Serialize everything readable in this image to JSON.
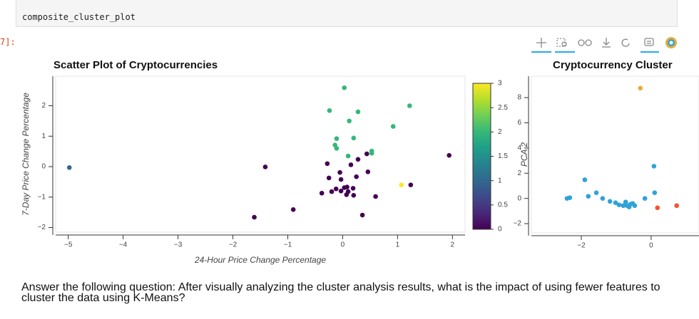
{
  "cell": {
    "prompt": "7]:",
    "code": "composite_cluster_plot"
  },
  "chart_data": [
    {
      "type": "scatter",
      "title": "Scatter Plot of Cryptocurrencies",
      "x_label": "24-Hour Price Change Percentage",
      "y_label": "7-Day Price Change Percentage",
      "x": [
        -4.98,
        -1.41,
        -1.61,
        -0.9,
        0.03,
        -0.24,
        0.28,
        0.12,
        1.22,
        0.92,
        -0.11,
        0.2,
        -0.14,
        -0.11,
        0.53,
        0.53,
        0.1,
        1.07,
        1.94,
        0.44,
        0.28,
        -0.28,
        0.15,
        0.46,
        -0.05,
        -0.25,
        0.25,
        -0.03,
        0.03,
        0.08,
        -0.03,
        0.1,
        0.19,
        -0.12,
        -0.38,
        -0.2,
        0.2,
        0.07,
        0.6,
        1.24,
        0.36
      ],
      "values": [
        -0.03,
        -0.01,
        -1.66,
        -1.41,
        2.59,
        1.84,
        1.8,
        1.5,
        2.0,
        1.32,
        0.92,
        0.94,
        0.71,
        0.6,
        0.51,
        0.44,
        0.35,
        -0.6,
        0.37,
        0.42,
        0.24,
        0.1,
        0.06,
        -0.17,
        -0.19,
        -0.37,
        -0.33,
        -0.42,
        -0.69,
        -0.67,
        -0.8,
        -0.82,
        -0.71,
        -0.73,
        -0.87,
        -0.82,
        -0.94,
        -0.92,
        -0.98,
        -0.6,
        -1.59
      ],
      "color_values": [
        1,
        0,
        0,
        0,
        2,
        2,
        2,
        2,
        2,
        2,
        2,
        2,
        2,
        2,
        2,
        2,
        2,
        3,
        0,
        0,
        0,
        0,
        0,
        0,
        0,
        0,
        0,
        0,
        0,
        0,
        0,
        0,
        0,
        0,
        0,
        0,
        0,
        0,
        0,
        0,
        0
      ],
      "colormap": "viridis",
      "clim": [
        0,
        3
      ],
      "cticks": [
        0,
        0.5,
        1,
        1.5,
        2,
        2.5,
        3
      ],
      "xlim": [
        -5.23,
        2.23
      ],
      "ylim": [
        -2.15,
        2.97
      ],
      "xticks": [
        {
          "value": -5,
          "label": "−5"
        },
        {
          "value": -4,
          "label": "−4"
        },
        {
          "value": -3,
          "label": "−3"
        },
        {
          "value": -2,
          "label": "−2"
        },
        {
          "value": -1,
          "label": "−1"
        },
        0,
        1,
        2
      ],
      "yticks": [
        {
          "value": -2,
          "label": "−2"
        },
        {
          "value": -1,
          "label": "−1"
        },
        0,
        1,
        2
      ]
    },
    {
      "type": "scatter",
      "title": "Cryptocurrency Cluster",
      "y_label": "PCA 2",
      "series": [
        {
          "color": "#30a2da",
          "x": [
            -2.41,
            -2.33,
            -1.9,
            -1.8,
            -1.57,
            -1.39,
            -1.18,
            -1.02,
            -0.92,
            -0.8,
            -0.69,
            -0.59,
            -0.73,
            -0.63,
            -0.53,
            -0.47,
            -0.18,
            0.1,
            0.08
          ],
          "values": [
            0,
            0.06,
            1.48,
            0.17,
            0.45,
            0,
            -0.23,
            -0.34,
            -0.51,
            -0.57,
            -0.57,
            -0.45,
            -0.28,
            -0.68,
            -0.4,
            -0.57,
            0,
            0.45,
            2.56
          ]
        },
        {
          "color": "#e5ae38",
          "x": [
            -0.31
          ],
          "values": [
            8.75
          ]
        },
        {
          "color": "#fc4f30",
          "x": [
            0.18,
            0.73
          ],
          "values": [
            -0.74,
            -0.57
          ]
        }
      ],
      "xlim": [
        -3.43,
        1.37
      ],
      "ylim": [
        -2.73,
        9.7
      ],
      "xticks": [
        {
          "value": -2,
          "label": "−2"
        },
        0
      ],
      "yticks": [
        {
          "value": -2,
          "label": "−2"
        },
        0,
        2,
        4,
        6,
        8
      ]
    }
  ],
  "question": "Answer the following question: After visually analyzing the cluster analysis results, what is the impact of using fewer features to cluster the data using K-Means?"
}
